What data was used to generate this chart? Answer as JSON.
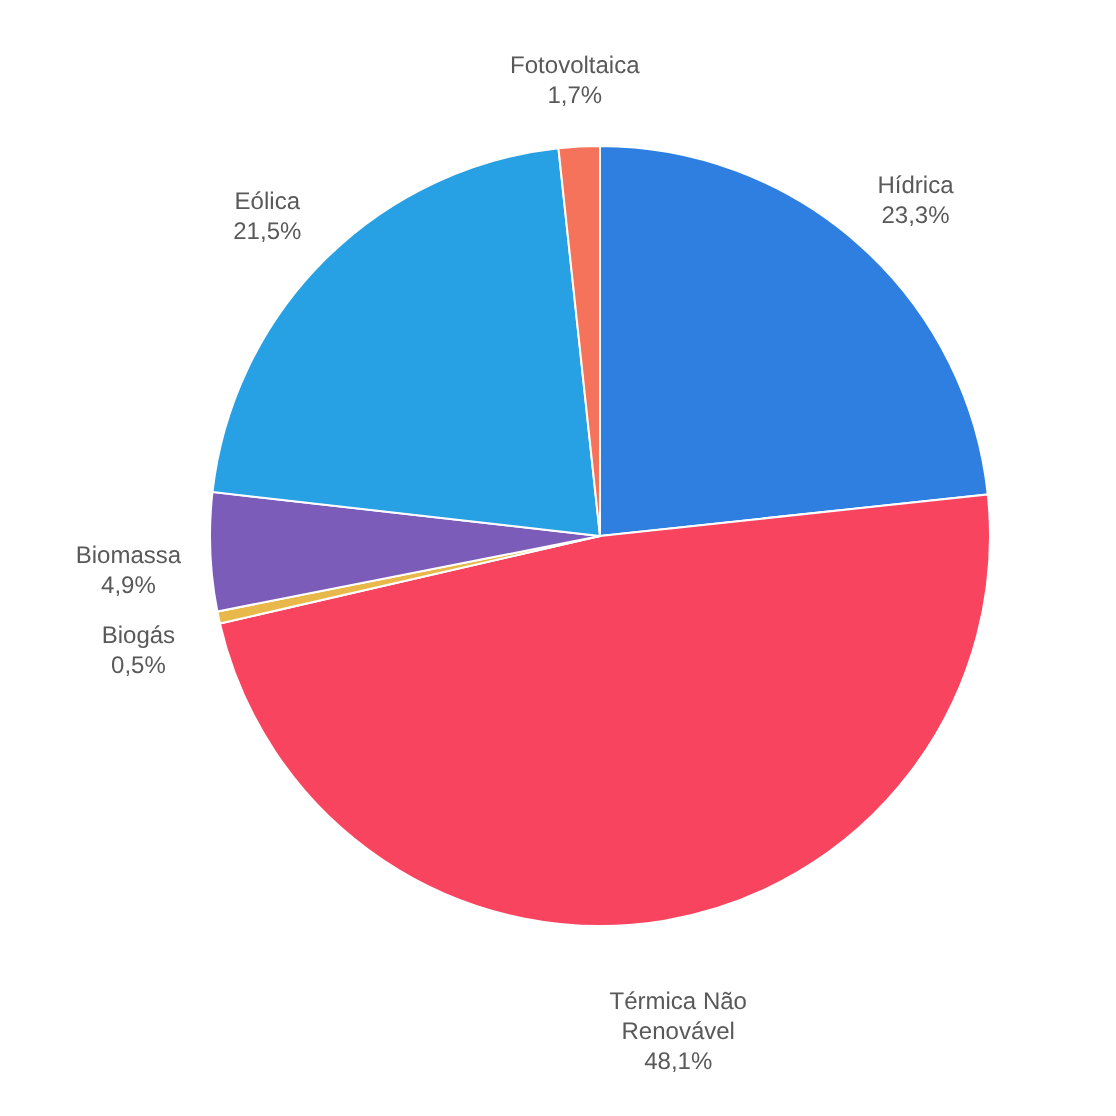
{
  "chart_data": {
    "type": "pie",
    "categories": [
      "Hídrica",
      "Térmica Não Renovável",
      "Biogás",
      "Biomassa",
      "Eólica",
      "Fotovoltaica"
    ],
    "values": [
      23.3,
      48.1,
      0.5,
      4.9,
      21.5,
      1.7
    ],
    "colors": [
      "#2e7fdf",
      "#f8445e",
      "#e8b84a",
      "#7b5cb8",
      "#27a0e4",
      "#f5735a"
    ],
    "value_labels": [
      "23,3%",
      "48,1%",
      "0,5%",
      "4,9%",
      "21,5%",
      "1,7%"
    ]
  }
}
